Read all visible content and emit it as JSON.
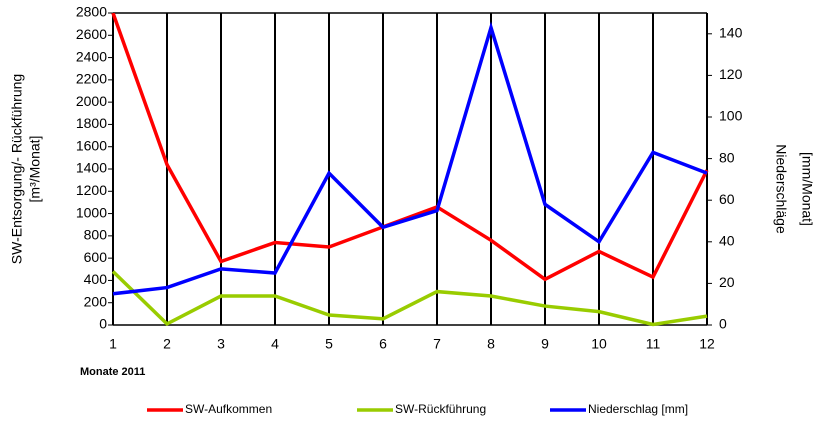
{
  "chart_data": {
    "type": "line",
    "y_label": [
      "SW-Entsorgung/- Rückführung",
      "[m³/Monat]"
    ],
    "y2_label": [
      "Niederschläge",
      "[mm/Monat]"
    ],
    "x_label": "Monate 2011",
    "x": [
      1,
      2,
      3,
      4,
      5,
      6,
      7,
      8,
      9,
      10,
      11,
      12
    ],
    "xlim": [
      1,
      12
    ],
    "xticks": [
      1,
      2,
      3,
      4,
      5,
      6,
      7,
      8,
      9,
      10,
      11,
      12
    ],
    "ylim": [
      0,
      2800
    ],
    "yticks": [
      0,
      200,
      400,
      600,
      800,
      1000,
      1200,
      1400,
      1600,
      1800,
      2000,
      2200,
      2400,
      2600,
      2800
    ],
    "y2lim": [
      0,
      150
    ],
    "y2ticks": [
      0,
      20,
      40,
      60,
      80,
      100,
      120,
      140
    ],
    "grid": true,
    "legend": "bottom",
    "series": [
      {
        "name": "SW-Aufkommen",
        "color": "#ff0000",
        "values": [
          2800,
          1440,
          570,
          740,
          700,
          880,
          1060,
          760,
          410,
          660,
          430,
          1390
        ]
      },
      {
        "name": "SW-Rückführung",
        "color": "#99cc00",
        "values": [
          480,
          10,
          260,
          260,
          90,
          55,
          300,
          260,
          170,
          120,
          5,
          80
        ]
      },
      {
        "name": "Niederschlag [mm]",
        "color": "#0000ff",
        "axis": "y2",
        "values": [
          15,
          18,
          27,
          25,
          73,
          47,
          55,
          143,
          58,
          40,
          83,
          73
        ]
      }
    ]
  }
}
